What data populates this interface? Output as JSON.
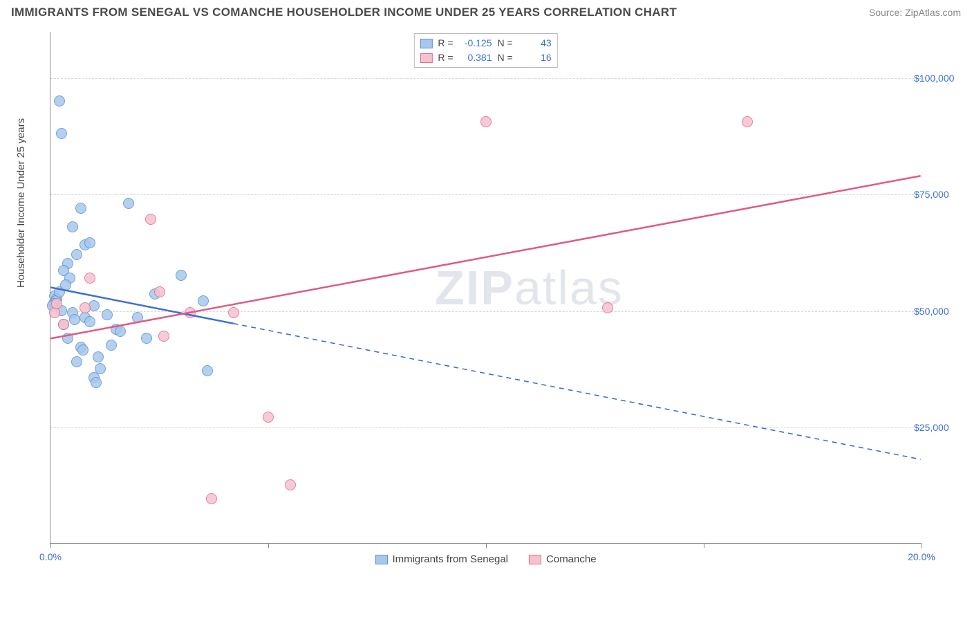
{
  "title": "IMMIGRANTS FROM SENEGAL VS COMANCHE HOUSEHOLDER INCOME UNDER 25 YEARS CORRELATION CHART",
  "source": "Source: ZipAtlas.com",
  "watermark_bold": "ZIP",
  "watermark_rest": "atlas",
  "chart": {
    "type": "scatter",
    "ylabel": "Householder Income Under 25 years",
    "xlim": [
      0,
      20
    ],
    "ylim": [
      0,
      110000
    ],
    "yticks": [
      25000,
      50000,
      75000,
      100000
    ],
    "ytick_labels": [
      "$25,000",
      "$50,000",
      "$75,000",
      "$100,000"
    ],
    "xticks": [
      0,
      5,
      10,
      15,
      20
    ],
    "xtick_labels": [
      "0.0%",
      "",
      "",
      "",
      "20.0%"
    ],
    "grid_color": "#d8d8d8",
    "point_radius": 8,
    "series": [
      {
        "name": "Immigrants from Senegal",
        "fill": "#a7c8ec",
        "stroke": "#5a91d4",
        "line_color": "#3b6fd6",
        "R": "-0.125",
        "N": "43",
        "trend": {
          "x1": 0,
          "y1": 55000,
          "x2": 20,
          "y2": 18000,
          "solid_until_x": 4.2
        },
        "points": [
          [
            0.2,
            95000
          ],
          [
            0.25,
            88000
          ],
          [
            0.7,
            72000
          ],
          [
            1.8,
            73000
          ],
          [
            0.5,
            68000
          ],
          [
            0.8,
            64000
          ],
          [
            0.9,
            64500
          ],
          [
            0.6,
            62000
          ],
          [
            0.4,
            60000
          ],
          [
            0.3,
            58500
          ],
          [
            0.45,
            57000
          ],
          [
            3.0,
            57500
          ],
          [
            0.1,
            53000
          ],
          [
            0.15,
            52500
          ],
          [
            0.12,
            52000
          ],
          [
            0.08,
            51500
          ],
          [
            0.05,
            51000
          ],
          [
            0.2,
            54000
          ],
          [
            2.4,
            53500
          ],
          [
            3.5,
            52000
          ],
          [
            1.0,
            51000
          ],
          [
            1.3,
            49000
          ],
          [
            0.5,
            49500
          ],
          [
            0.55,
            48000
          ],
          [
            0.8,
            48500
          ],
          [
            2.0,
            48500
          ],
          [
            0.3,
            47000
          ],
          [
            0.9,
            47500
          ],
          [
            1.5,
            46000
          ],
          [
            1.6,
            45500
          ],
          [
            0.4,
            44000
          ],
          [
            2.2,
            44000
          ],
          [
            0.7,
            42000
          ],
          [
            0.75,
            41500
          ],
          [
            1.1,
            40000
          ],
          [
            1.15,
            37500
          ],
          [
            1.0,
            35500
          ],
          [
            1.05,
            34500
          ],
          [
            3.6,
            37000
          ],
          [
            0.6,
            39000
          ],
          [
            1.4,
            42500
          ],
          [
            0.35,
            55500
          ],
          [
            0.25,
            50000
          ]
        ]
      },
      {
        "name": "Comanche",
        "fill": "#f6c2cf",
        "stroke": "#e06a8a",
        "line_color": "#e05a80",
        "R": "0.381",
        "N": "16",
        "trend": {
          "x1": 0,
          "y1": 44000,
          "x2": 20,
          "y2": 79000,
          "solid_until_x": 20
        },
        "points": [
          [
            10.0,
            90500
          ],
          [
            16.0,
            90500
          ],
          [
            12.8,
            50500
          ],
          [
            2.3,
            69500
          ],
          [
            0.9,
            57000
          ],
          [
            2.5,
            54000
          ],
          [
            4.2,
            49500
          ],
          [
            3.2,
            49500
          ],
          [
            0.1,
            49500
          ],
          [
            0.15,
            51500
          ],
          [
            0.8,
            50500
          ],
          [
            2.6,
            44500
          ],
          [
            5.0,
            27000
          ],
          [
            3.7,
            9500
          ],
          [
            5.5,
            12500
          ],
          [
            0.3,
            47000
          ]
        ]
      }
    ],
    "bottom_legend": [
      {
        "label": "Immigrants from Senegal",
        "fill": "#a7c8ec",
        "stroke": "#5a91d4"
      },
      {
        "label": "Comanche",
        "fill": "#f6c2cf",
        "stroke": "#e06a8a"
      }
    ]
  }
}
